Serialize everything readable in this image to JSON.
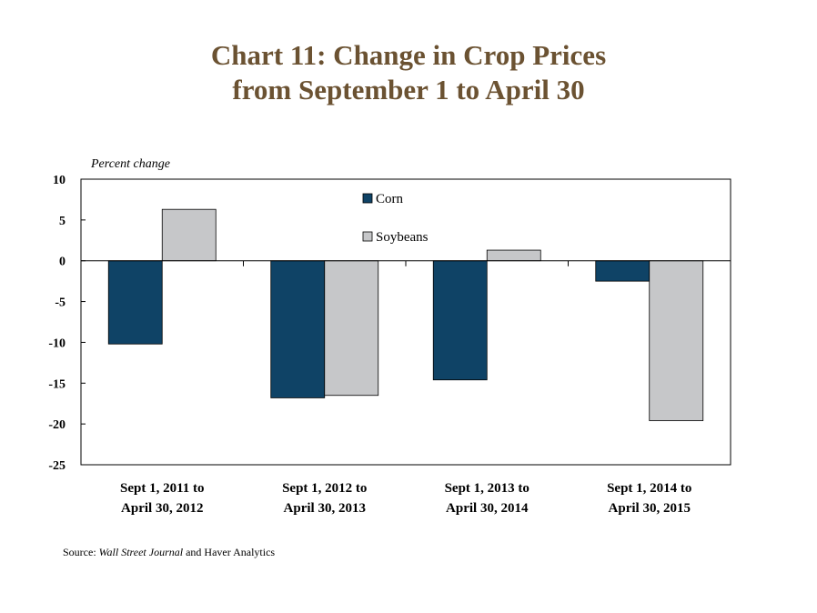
{
  "title_line1": "Chart 11: Change in Crop Prices",
  "title_line2": "from September 1 to April 30",
  "source": {
    "prefix": "Source: ",
    "italic": "Wall Street Journal",
    "suffix": " and Haver Analytics"
  },
  "colors": {
    "corn": "#0f4366",
    "soybeans": "#c6c7c9",
    "title": "#6b5232"
  },
  "chart_data": {
    "type": "bar",
    "ylabel": "Percent change",
    "ylim": [
      -25,
      10
    ],
    "yticks": [
      10,
      5,
      0,
      -5,
      -10,
      -15,
      -20,
      -25
    ],
    "grid": false,
    "legend_position": "inside-top",
    "categories": [
      [
        "Sept 1, 2011 to",
        "April 30, 2012"
      ],
      [
        "Sept 1, 2012 to",
        "April 30, 2013"
      ],
      [
        "Sept 1, 2013 to",
        "April 30, 2014"
      ],
      [
        "Sept 1, 2014 to",
        "April 30, 2015"
      ]
    ],
    "series": [
      {
        "name": "Corn",
        "values": [
          -10.2,
          -16.8,
          -14.6,
          -2.5
        ]
      },
      {
        "name": "Soybeans",
        "values": [
          6.3,
          -16.5,
          1.3,
          -19.6
        ]
      }
    ]
  }
}
